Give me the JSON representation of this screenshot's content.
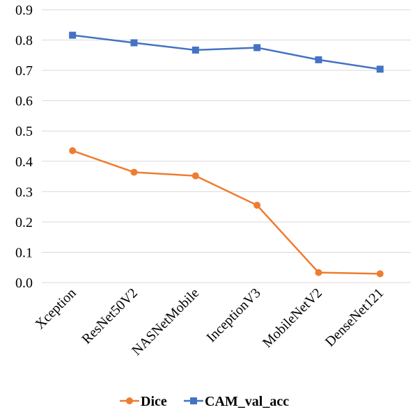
{
  "chart_data": {
    "type": "line",
    "categories": [
      "Xception",
      "ResNet50V2",
      "NASNetMobile",
      "InceptionV3",
      "MobileNetV2",
      "DenseNet121"
    ],
    "series": [
      {
        "name": "Dice",
        "values": [
          0.435,
          0.364,
          0.352,
          0.255,
          0.033,
          0.029
        ],
        "color": "#ed7d31",
        "marker": "circle"
      },
      {
        "name": "CAM_val_acc",
        "values": [
          0.816,
          0.791,
          0.767,
          0.775,
          0.735,
          0.704
        ],
        "color": "#4472c4",
        "marker": "square"
      }
    ],
    "yticks": [
      "0.0",
      "0.1",
      "0.2",
      "0.3",
      "0.4",
      "0.5",
      "0.6",
      "0.7",
      "0.8",
      "0.9"
    ],
    "ylim": [
      0,
      0.9
    ],
    "grid": true,
    "legend_position": "bottom",
    "xlabel_rotation": -45
  }
}
